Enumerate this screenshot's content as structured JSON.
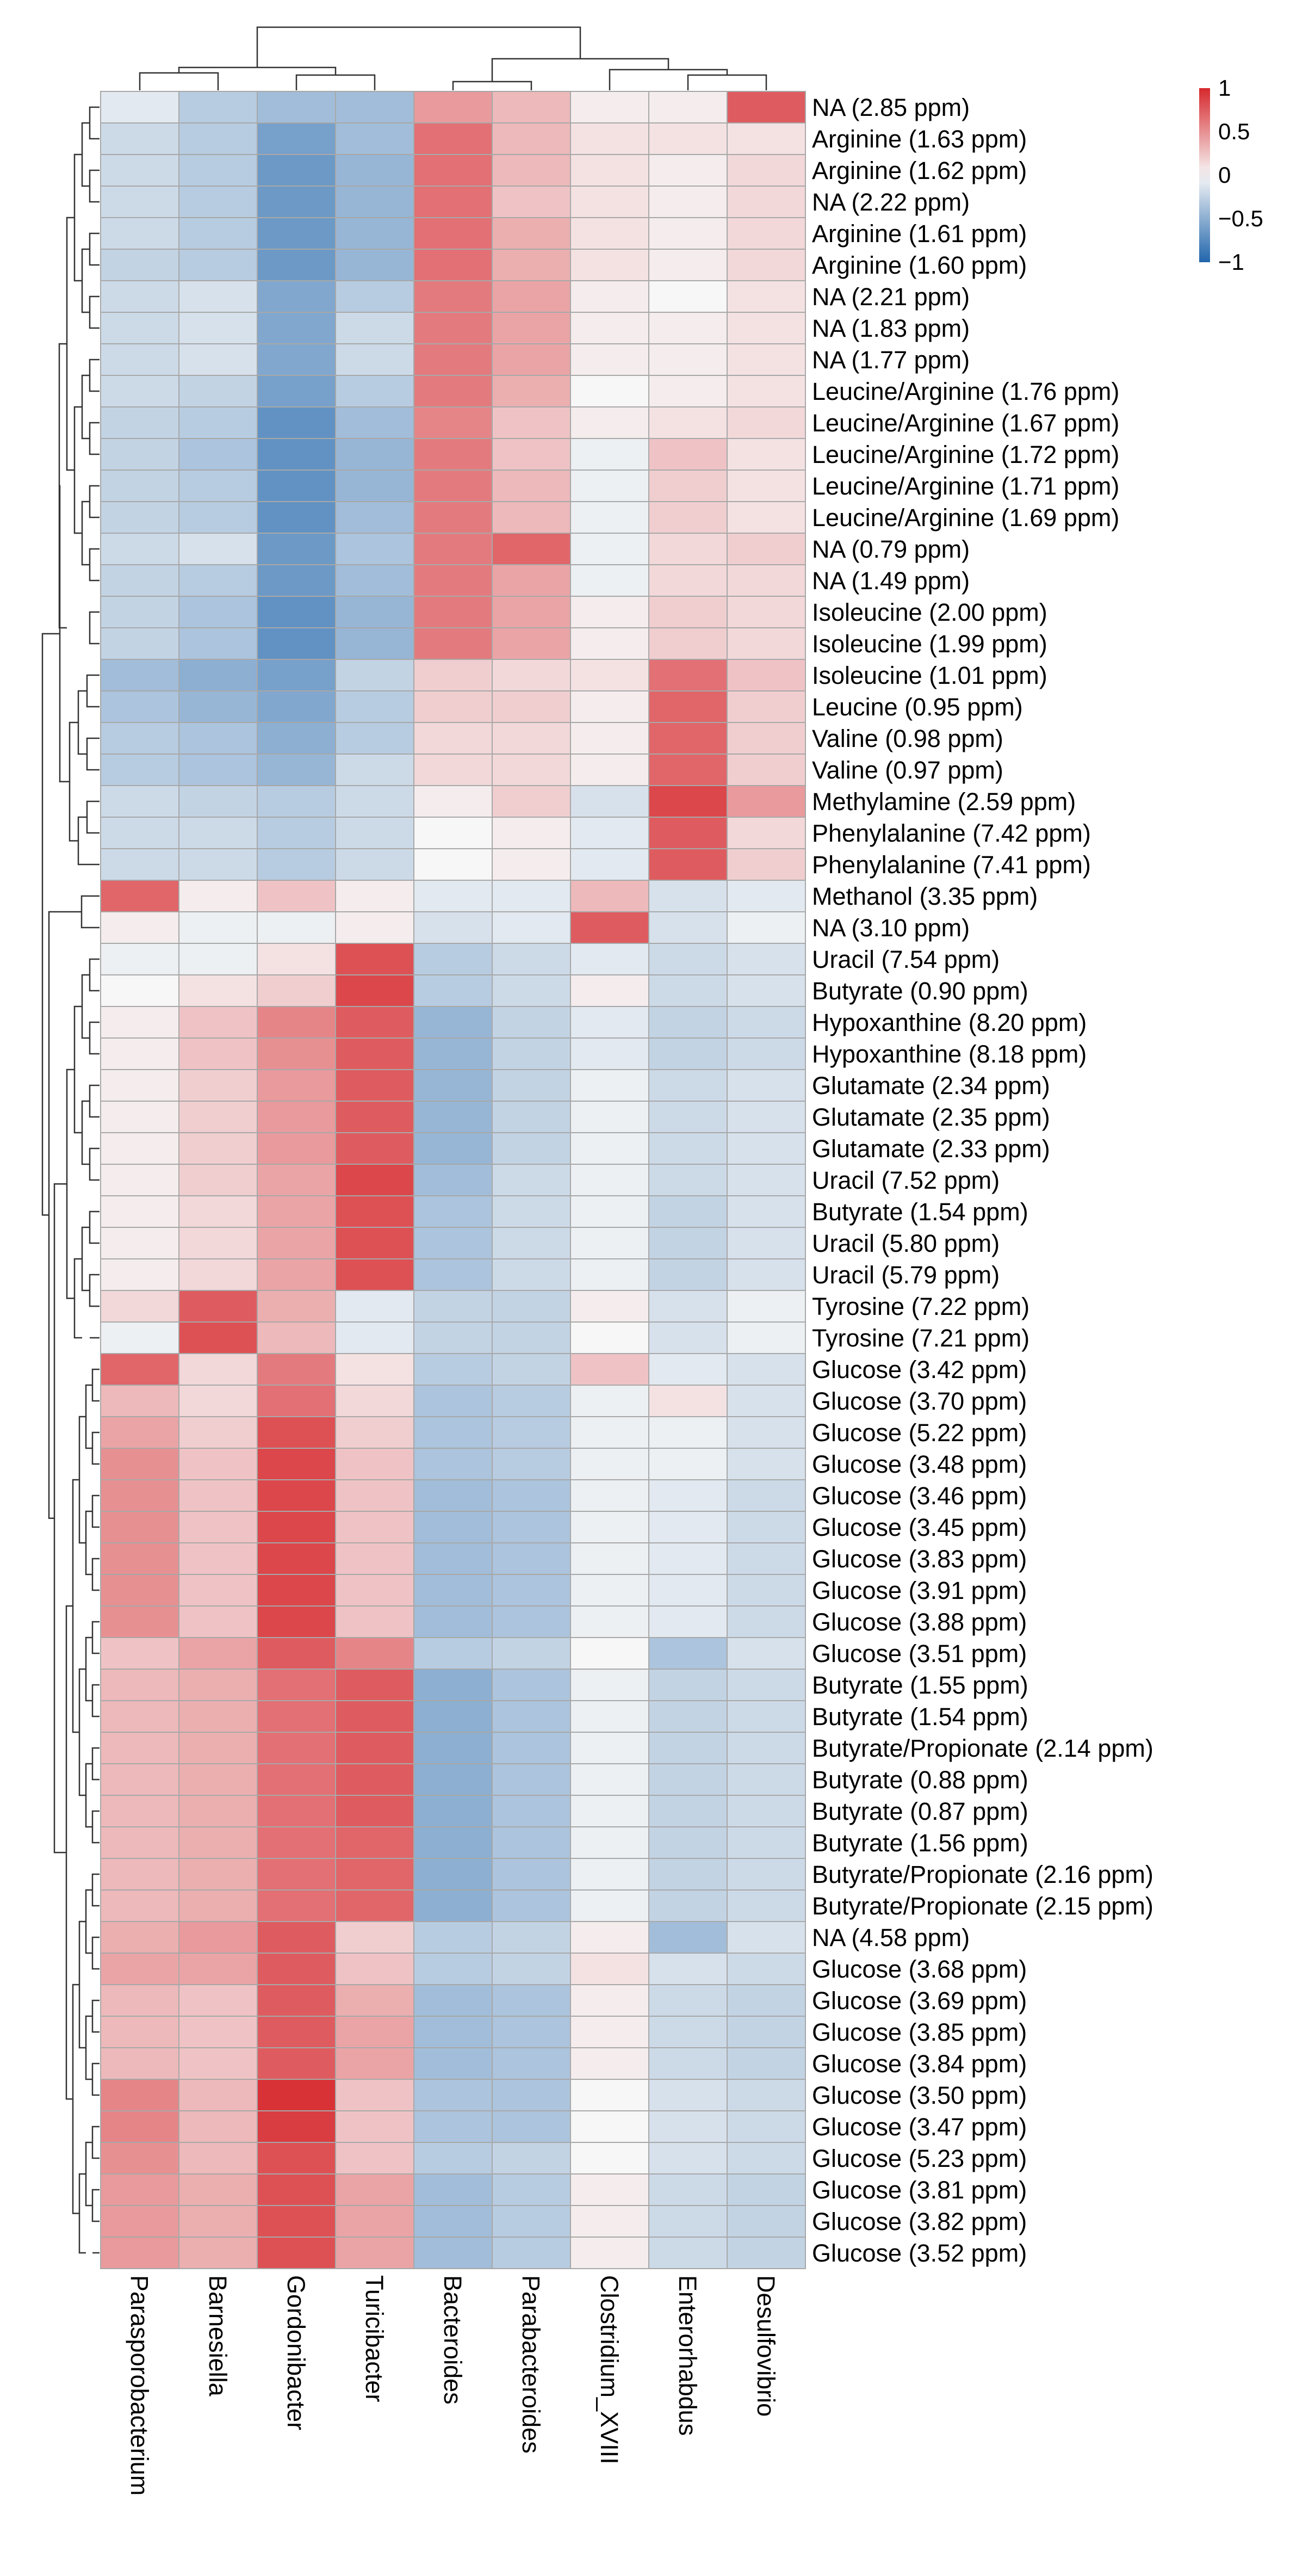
{
  "chart_data": {
    "type": "heatmap",
    "title": "",
    "columns": [
      "Parasporobacterium",
      "Barnesiella",
      "Gordonibacter",
      "Turicibacter",
      "Bacteroides",
      "Parabacteroides",
      "Clostridium_XVIII",
      "Enterorhabdus",
      "Desulfovibrio"
    ],
    "rows": [
      "NA (2.85 ppm)",
      "Arginine (1.63 ppm)",
      "Arginine (1.62 ppm)",
      "NA (2.22 ppm)",
      "Arginine (1.61 ppm)",
      "Arginine (1.60 ppm)",
      "NA (2.21 ppm)",
      "NA (1.83 ppm)",
      "NA (1.77 ppm)",
      "Leucine/Arginine (1.76 ppm)",
      "Leucine/Arginine (1.67 ppm)",
      "Leucine/Arginine (1.72 ppm)",
      "Leucine/Arginine (1.71 ppm)",
      "Leucine/Arginine (1.69 ppm)",
      "NA (0.79 ppm)",
      "NA (1.49 ppm)",
      "Isoleucine (2.00 ppm)",
      "Isoleucine (1.99 ppm)",
      "Isoleucine (1.01 ppm)",
      "Leucine (0.95 ppm)",
      "Valine (0.98 ppm)",
      "Valine (0.97 ppm)",
      "Methylamine (2.59 ppm)",
      "Phenylalanine (7.42 ppm)",
      "Phenylalanine (7.41 ppm)",
      "Methanol (3.35 ppm)",
      "NA (3.10 ppm)",
      "Uracil (7.54 ppm)",
      "Butyrate (0.90 ppm)",
      "Hypoxanthine (8.20 ppm)",
      "Hypoxanthine (8.18 ppm)",
      "Glutamate (2.34 ppm)",
      "Glutamate (2.35 ppm)",
      "Glutamate (2.33 ppm)",
      "Uracil (7.52 ppm)",
      "Butyrate (1.54 ppm)",
      "Uracil (5.80 ppm)",
      "Uracil (5.79 ppm)",
      "Tyrosine (7.22 ppm)",
      "Tyrosine (7.21 ppm)",
      "Glucose (3.42 ppm)",
      "Glucose (3.70 ppm)",
      "Glucose (5.22 ppm)",
      "Glucose (3.48 ppm)",
      "Glucose (3.46 ppm)",
      "Glucose (3.45 ppm)",
      "Glucose (3.83 ppm)",
      "Glucose (3.91 ppm)",
      "Glucose (3.88 ppm)",
      "Glucose (3.51 ppm)",
      "Butyrate (1.55 ppm)",
      "Butyrate (1.54 ppm)",
      "Butyrate/Propionate (2.14 ppm)",
      "Butyrate (0.88 ppm)",
      "Butyrate (0.87 ppm)",
      "Butyrate (1.56 ppm)",
      "Butyrate/Propionate (2.16 ppm)",
      "Butyrate/Propionate (2.15 ppm)",
      "NA (4.58 ppm)",
      "Glucose (3.68 ppm)",
      "Glucose (3.69 ppm)",
      "Glucose (3.85 ppm)",
      "Glucose (3.84 ppm)",
      "Glucose (3.50 ppm)",
      "Glucose (3.47 ppm)",
      "Glucose (5.23 ppm)",
      "Glucose (3.81 ppm)",
      "Glucose (3.82 ppm)",
      "Glucose (3.52 ppm)"
    ],
    "values": [
      [
        -0.1,
        -0.3,
        -0.4,
        -0.4,
        0.45,
        0.3,
        0.05,
        0.05,
        0.75
      ],
      [
        -0.2,
        -0.3,
        -0.6,
        -0.4,
        0.65,
        0.3,
        0.1,
        0.1,
        0.1
      ],
      [
        -0.2,
        -0.3,
        -0.65,
        -0.45,
        0.65,
        0.3,
        0.1,
        0.05,
        0.15
      ],
      [
        -0.2,
        -0.3,
        -0.65,
        -0.45,
        0.65,
        0.25,
        0.1,
        0.05,
        0.15
      ],
      [
        -0.2,
        -0.3,
        -0.65,
        -0.45,
        0.65,
        0.35,
        0.1,
        0.05,
        0.15
      ],
      [
        -0.25,
        -0.3,
        -0.65,
        -0.45,
        0.65,
        0.35,
        0.1,
        0.05,
        0.15
      ],
      [
        -0.2,
        -0.15,
        -0.55,
        -0.3,
        0.6,
        0.4,
        0.05,
        0.0,
        0.1
      ],
      [
        -0.2,
        -0.15,
        -0.55,
        -0.2,
        0.6,
        0.4,
        0.05,
        0.05,
        0.1
      ],
      [
        -0.2,
        -0.15,
        -0.55,
        -0.2,
        0.6,
        0.4,
        0.05,
        0.05,
        0.1
      ],
      [
        -0.2,
        -0.25,
        -0.6,
        -0.3,
        0.6,
        0.35,
        0.0,
        0.05,
        0.1
      ],
      [
        -0.25,
        -0.3,
        -0.7,
        -0.4,
        0.55,
        0.25,
        0.05,
        0.1,
        0.15
      ],
      [
        -0.25,
        -0.35,
        -0.7,
        -0.45,
        0.6,
        0.25,
        -0.05,
        0.25,
        0.1
      ],
      [
        -0.25,
        -0.3,
        -0.7,
        -0.45,
        0.6,
        0.3,
        -0.05,
        0.2,
        0.1
      ],
      [
        -0.25,
        -0.3,
        -0.7,
        -0.4,
        0.6,
        0.3,
        -0.05,
        0.2,
        0.1
      ],
      [
        -0.2,
        -0.15,
        -0.65,
        -0.35,
        0.6,
        0.7,
        -0.05,
        0.15,
        0.2
      ],
      [
        -0.25,
        -0.3,
        -0.65,
        -0.4,
        0.6,
        0.4,
        -0.05,
        0.15,
        0.15
      ],
      [
        -0.25,
        -0.35,
        -0.7,
        -0.45,
        0.6,
        0.4,
        0.05,
        0.2,
        0.15
      ],
      [
        -0.25,
        -0.35,
        -0.7,
        -0.45,
        0.6,
        0.4,
        0.05,
        0.2,
        0.15
      ],
      [
        -0.4,
        -0.5,
        -0.6,
        -0.25,
        0.2,
        0.15,
        0.1,
        0.65,
        0.25
      ],
      [
        -0.35,
        -0.45,
        -0.55,
        -0.3,
        0.2,
        0.2,
        0.05,
        0.7,
        0.2
      ],
      [
        -0.3,
        -0.35,
        -0.5,
        -0.3,
        0.15,
        0.15,
        0.05,
        0.7,
        0.2
      ],
      [
        -0.3,
        -0.35,
        -0.45,
        -0.2,
        0.15,
        0.15,
        0.05,
        0.7,
        0.2
      ],
      [
        -0.2,
        -0.25,
        -0.3,
        -0.2,
        0.05,
        0.2,
        -0.15,
        0.85,
        0.45
      ],
      [
        -0.2,
        -0.2,
        -0.3,
        -0.2,
        0.0,
        0.05,
        -0.1,
        0.75,
        0.15
      ],
      [
        -0.2,
        -0.2,
        -0.3,
        -0.2,
        0.0,
        0.05,
        -0.1,
        0.75,
        0.2
      ],
      [
        0.7,
        0.05,
        0.25,
        0.05,
        -0.1,
        -0.1,
        0.3,
        -0.15,
        -0.1
      ],
      [
        0.05,
        -0.05,
        -0.05,
        0.05,
        -0.15,
        -0.1,
        0.75,
        -0.15,
        -0.05
      ],
      [
        -0.05,
        -0.05,
        0.1,
        0.8,
        -0.3,
        -0.2,
        -0.1,
        -0.2,
        -0.15
      ],
      [
        0.0,
        0.1,
        0.2,
        0.85,
        -0.3,
        -0.2,
        0.05,
        -0.2,
        -0.15
      ],
      [
        0.05,
        0.25,
        0.55,
        0.75,
        -0.45,
        -0.25,
        -0.1,
        -0.25,
        -0.2
      ],
      [
        0.05,
        0.25,
        0.5,
        0.75,
        -0.45,
        -0.25,
        -0.1,
        -0.25,
        -0.2
      ],
      [
        0.05,
        0.2,
        0.45,
        0.75,
        -0.45,
        -0.25,
        -0.05,
        -0.2,
        -0.15
      ],
      [
        0.05,
        0.2,
        0.45,
        0.75,
        -0.45,
        -0.25,
        -0.05,
        -0.2,
        -0.15
      ],
      [
        0.05,
        0.2,
        0.45,
        0.75,
        -0.45,
        -0.25,
        -0.05,
        -0.2,
        -0.15
      ],
      [
        0.05,
        0.2,
        0.4,
        0.85,
        -0.4,
        -0.2,
        -0.05,
        -0.2,
        -0.15
      ],
      [
        0.05,
        0.15,
        0.4,
        0.8,
        -0.35,
        -0.2,
        -0.05,
        -0.25,
        -0.15
      ],
      [
        0.05,
        0.15,
        0.4,
        0.8,
        -0.35,
        -0.2,
        -0.05,
        -0.25,
        -0.15
      ],
      [
        0.05,
        0.15,
        0.4,
        0.8,
        -0.35,
        -0.2,
        -0.05,
        -0.25,
        -0.15
      ],
      [
        0.15,
        0.75,
        0.35,
        -0.1,
        -0.25,
        -0.25,
        0.05,
        -0.15,
        -0.05
      ],
      [
        -0.05,
        0.8,
        0.3,
        -0.1,
        -0.25,
        -0.25,
        0.0,
        -0.15,
        -0.05
      ],
      [
        0.7,
        0.15,
        0.6,
        0.1,
        -0.3,
        -0.25,
        0.25,
        -0.1,
        -0.15
      ],
      [
        0.3,
        0.15,
        0.65,
        0.15,
        -0.35,
        -0.3,
        -0.05,
        0.1,
        -0.15
      ],
      [
        0.4,
        0.2,
        0.8,
        0.2,
        -0.35,
        -0.3,
        -0.05,
        -0.05,
        -0.15
      ],
      [
        0.5,
        0.25,
        0.85,
        0.25,
        -0.35,
        -0.3,
        -0.05,
        -0.05,
        -0.15
      ],
      [
        0.5,
        0.25,
        0.85,
        0.25,
        -0.4,
        -0.35,
        -0.05,
        -0.1,
        -0.2
      ],
      [
        0.5,
        0.25,
        0.85,
        0.25,
        -0.4,
        -0.35,
        -0.05,
        -0.1,
        -0.2
      ],
      [
        0.5,
        0.25,
        0.85,
        0.25,
        -0.4,
        -0.35,
        -0.05,
        -0.1,
        -0.2
      ],
      [
        0.5,
        0.25,
        0.85,
        0.25,
        -0.4,
        -0.35,
        -0.05,
        -0.1,
        -0.2
      ],
      [
        0.5,
        0.25,
        0.85,
        0.25,
        -0.4,
        -0.35,
        -0.05,
        -0.1,
        -0.2
      ],
      [
        0.25,
        0.4,
        0.75,
        0.55,
        -0.3,
        -0.25,
        0.0,
        -0.35,
        -0.15
      ],
      [
        0.3,
        0.35,
        0.65,
        0.75,
        -0.5,
        -0.35,
        -0.05,
        -0.25,
        -0.2
      ],
      [
        0.3,
        0.35,
        0.65,
        0.75,
        -0.5,
        -0.35,
        -0.05,
        -0.25,
        -0.2
      ],
      [
        0.3,
        0.35,
        0.65,
        0.75,
        -0.5,
        -0.35,
        -0.05,
        -0.25,
        -0.2
      ],
      [
        0.3,
        0.35,
        0.65,
        0.75,
        -0.5,
        -0.35,
        -0.05,
        -0.25,
        -0.2
      ],
      [
        0.3,
        0.35,
        0.65,
        0.75,
        -0.5,
        -0.35,
        -0.05,
        -0.25,
        -0.2
      ],
      [
        0.3,
        0.35,
        0.65,
        0.7,
        -0.5,
        -0.35,
        -0.05,
        -0.25,
        -0.2
      ],
      [
        0.3,
        0.35,
        0.65,
        0.7,
        -0.5,
        -0.35,
        -0.05,
        -0.25,
        -0.2
      ],
      [
        0.3,
        0.35,
        0.65,
        0.7,
        -0.5,
        -0.35,
        -0.05,
        -0.25,
        -0.2
      ],
      [
        0.35,
        0.45,
        0.75,
        0.2,
        -0.3,
        -0.25,
        0.05,
        -0.4,
        -0.15
      ],
      [
        0.4,
        0.4,
        0.75,
        0.25,
        -0.3,
        -0.25,
        0.1,
        -0.15,
        -0.2
      ],
      [
        0.3,
        0.25,
        0.75,
        0.35,
        -0.4,
        -0.35,
        0.05,
        -0.2,
        -0.25
      ],
      [
        0.3,
        0.25,
        0.75,
        0.4,
        -0.4,
        -0.35,
        0.05,
        -0.2,
        -0.25
      ],
      [
        0.3,
        0.25,
        0.75,
        0.4,
        -0.4,
        -0.35,
        0.05,
        -0.2,
        -0.25
      ],
      [
        0.55,
        0.3,
        0.95,
        0.25,
        -0.35,
        -0.35,
        0.0,
        -0.15,
        -0.2
      ],
      [
        0.55,
        0.3,
        0.9,
        0.25,
        -0.35,
        -0.35,
        0.0,
        -0.15,
        -0.2
      ],
      [
        0.5,
        0.3,
        0.8,
        0.25,
        -0.3,
        -0.25,
        0.0,
        -0.15,
        -0.2
      ],
      [
        0.45,
        0.35,
        0.8,
        0.4,
        -0.4,
        -0.3,
        0.05,
        -0.2,
        -0.25
      ],
      [
        0.45,
        0.35,
        0.8,
        0.4,
        -0.4,
        -0.3,
        0.05,
        -0.2,
        -0.25
      ],
      [
        0.45,
        0.35,
        0.8,
        0.4,
        -0.4,
        -0.3,
        0.05,
        -0.2,
        -0.25
      ]
    ],
    "color_scale": {
      "min": -1,
      "max": 1,
      "low_color": "#2166ac",
      "mid_color": "#f7f7f7",
      "high_color": "#d6282d",
      "ticks": [
        "1",
        "0.5",
        "0",
        "−0.5",
        "−1"
      ],
      "tick_values": [
        1,
        0.5,
        0,
        -0.5,
        -1
      ]
    },
    "legend_position": "top-right",
    "row_dendrogram": true,
    "column_dendrogram": true,
    "column_label_rotation": "vertical"
  }
}
